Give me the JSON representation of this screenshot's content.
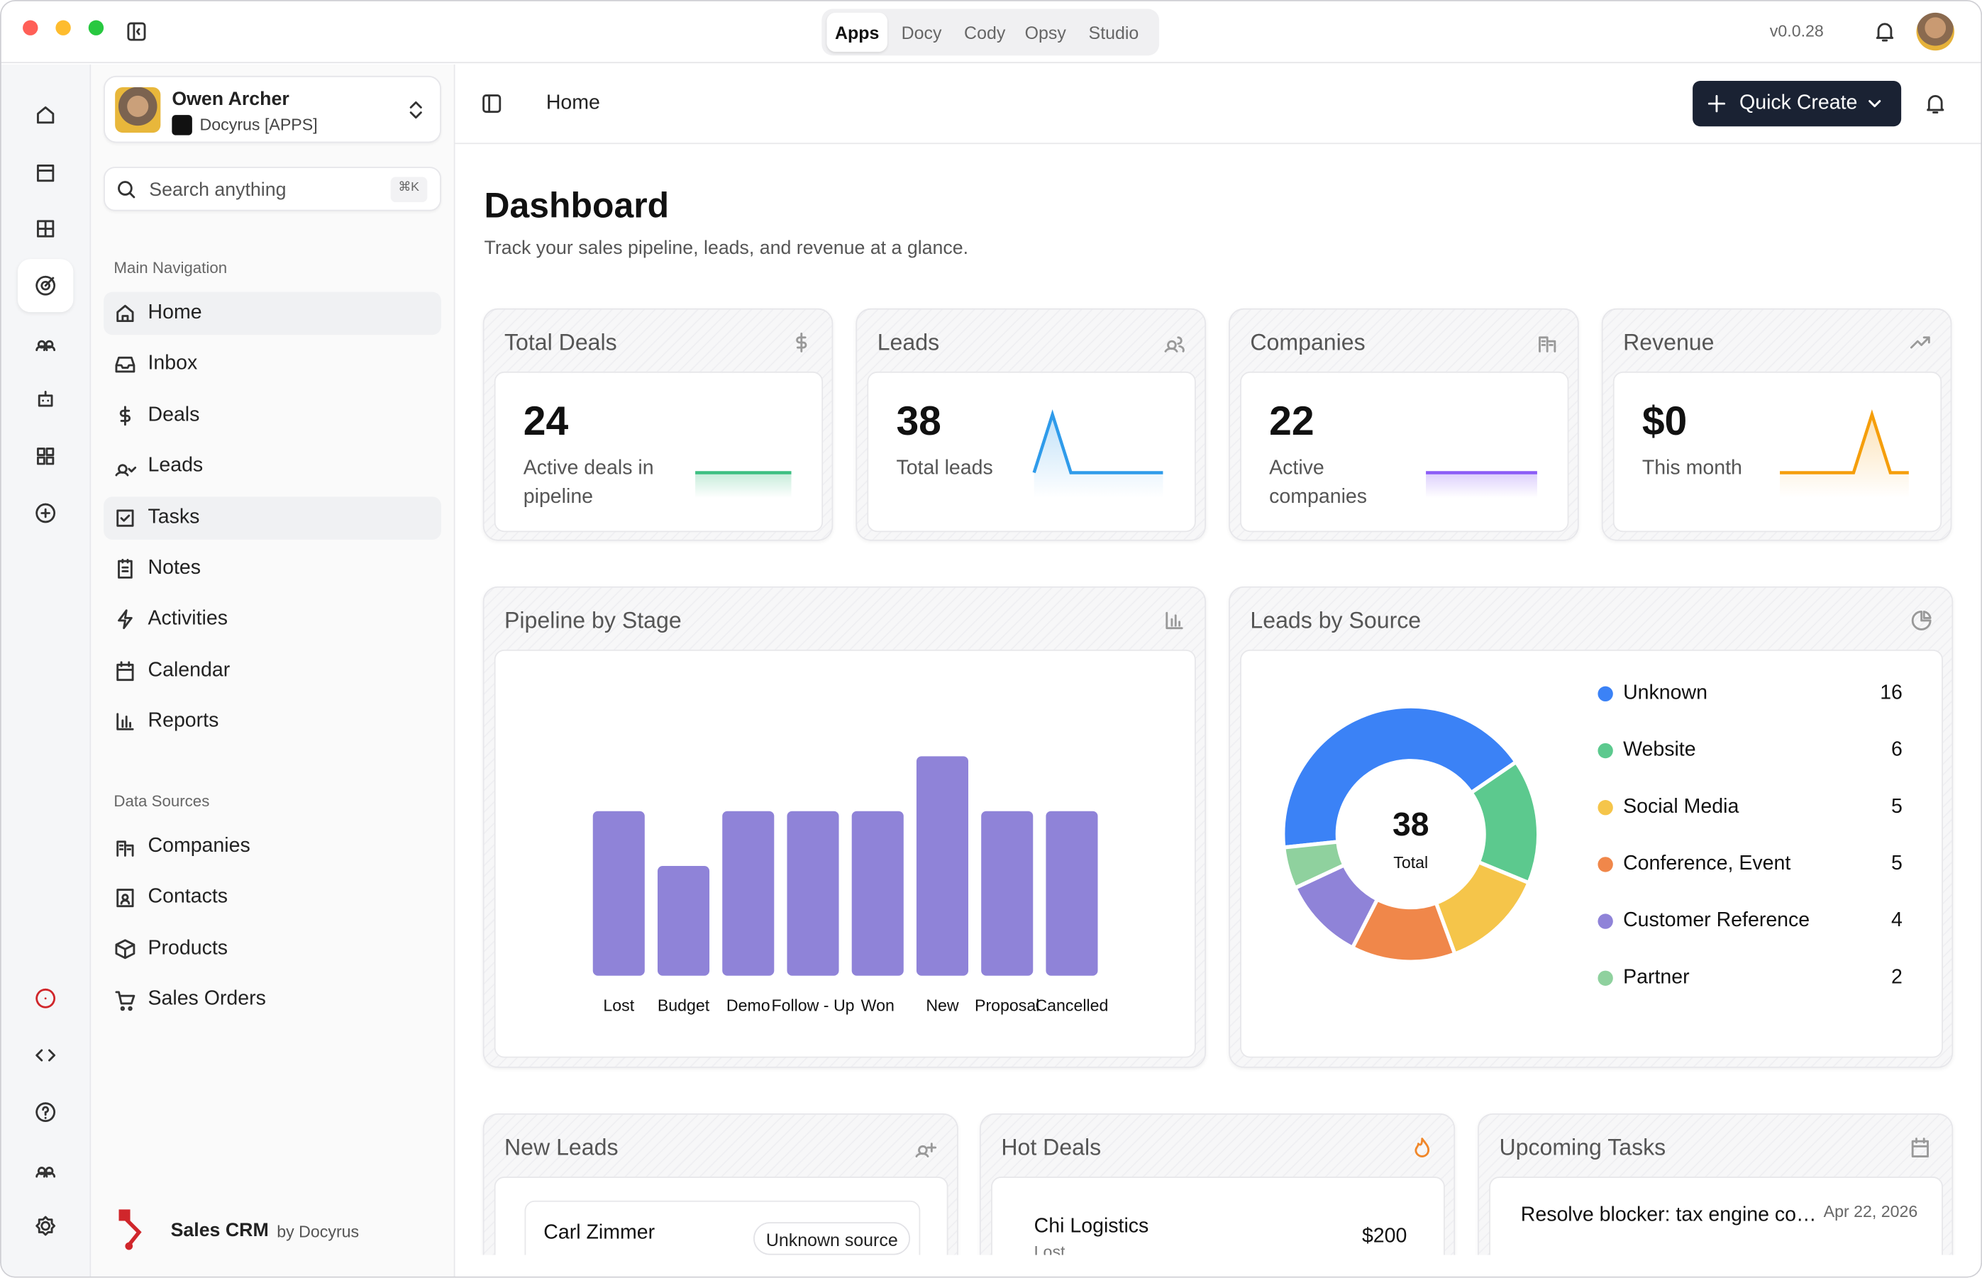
{
  "window": {
    "tabs": [
      "Apps",
      "Docy",
      "Cody",
      "Opsy",
      "Studio"
    ],
    "version": "v0.0.28"
  },
  "sidebar": {
    "user_name": "Owen Archer",
    "workspace": "Docyrus [APPS]",
    "search_placeholder": "Search anything",
    "search_shortcut": "⌘K",
    "main_heading": "Main Navigation",
    "main_items": [
      "Home",
      "Inbox",
      "Deals",
      "Leads",
      "Tasks",
      "Notes",
      "Activities",
      "Calendar",
      "Reports"
    ],
    "data_heading": "Data Sources",
    "data_items": [
      "Companies",
      "Contacts",
      "Products",
      "Sales Orders"
    ],
    "brand": "Sales CRM",
    "brand_by": "by Docyrus"
  },
  "header": {
    "breadcrumb": "Home",
    "quick_create": "Quick Create"
  },
  "page": {
    "title": "Dashboard",
    "subtitle": "Track your sales pipeline, leads, and revenue at a glance."
  },
  "stats": [
    {
      "title": "Total Deals",
      "value": 24,
      "caption": "Active deals in pipeline",
      "color": "#3dbf82",
      "spark": [
        0,
        0,
        0,
        0,
        0,
        0,
        0,
        0
      ]
    },
    {
      "title": "Leads",
      "value": 38,
      "caption": "Total leads",
      "color": "#2f9bea",
      "spark": [
        0,
        1,
        0,
        0,
        0,
        0,
        0,
        0
      ]
    },
    {
      "title": "Companies",
      "value": 22,
      "caption": "Active companies",
      "color": "#8b5cf6",
      "spark": [
        0,
        0,
        0,
        0,
        0,
        0,
        0,
        0
      ]
    },
    {
      "title": "Revenue",
      "value": "$0",
      "caption": "This month",
      "color": "#f59e0b",
      "spark": [
        0,
        0,
        0,
        0,
        0,
        1,
        0,
        0
      ]
    }
  ],
  "pipeline": {
    "title": "Pipeline by Stage",
    "color": "#8f83d8",
    "categories": [
      "Lost",
      "Budget",
      "Demo",
      "Follow - Up",
      "Won",
      "New",
      "Proposal",
      "Cancelled"
    ],
    "values": [
      3,
      2,
      3,
      3,
      3,
      4,
      3,
      3
    ]
  },
  "sources": {
    "title": "Leads by Source",
    "total": 38,
    "total_label": "Total",
    "items": [
      {
        "name": "Unknown",
        "value": 16,
        "color": "#3b82f6"
      },
      {
        "name": "Website",
        "value": 6,
        "color": "#5cc98e"
      },
      {
        "name": "Social Media",
        "value": 5,
        "color": "#f5c54a"
      },
      {
        "name": "Conference, Event",
        "value": 5,
        "color": "#f0874a"
      },
      {
        "name": "Customer Reference",
        "value": 4,
        "color": "#8f83d8"
      },
      {
        "name": "Partner",
        "value": 2,
        "color": "#8fd19e"
      }
    ]
  },
  "new_leads": {
    "title": "New Leads",
    "rows": [
      {
        "name": "Carl Zimmer",
        "source": "Unknown source"
      }
    ]
  },
  "hot_deals": {
    "title": "Hot Deals",
    "rows": [
      {
        "name": "Chi Logistics",
        "stage": "Lost",
        "amount": "$200"
      }
    ]
  },
  "tasks": {
    "title": "Upcoming Tasks",
    "rows": [
      {
        "title": "Resolve blocker: tax engine co…",
        "date": "Apr 22, 2026"
      }
    ]
  }
}
